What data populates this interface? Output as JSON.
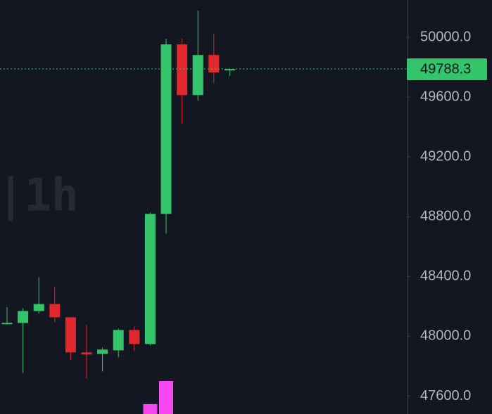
{
  "chart_data": {
    "type": "candlestick",
    "watermark": "|1h",
    "open": [
      48085,
      48089,
      48169,
      48216,
      48127,
      47892,
      47882,
      47906,
      48042,
      47948,
      48819,
      49953,
      49614,
      49882,
      49784
    ],
    "high": [
      48195,
      48188,
      48395,
      48329,
      48127,
      48075,
      47925,
      48052,
      48066,
      48828,
      49991,
      49991,
      50179,
      50024,
      49793
    ],
    "low": [
      48080,
      47755,
      48151,
      48094,
      47840,
      47718,
      47765,
      47859,
      47901,
      47939,
      48687,
      49421,
      49576,
      49694,
      49741
    ],
    "close": [
      48090,
      48169,
      48216,
      48127,
      47892,
      47878,
      47911,
      48042,
      47948,
      48819,
      49953,
      49614,
      49882,
      49765,
      49788.3
    ],
    "volume": [
      null,
      null,
      null,
      null,
      null,
      null,
      null,
      null,
      null,
      30,
      100,
      null,
      null,
      null,
      null
    ],
    "up_color": "#34c56b",
    "down_color": "#e0282e",
    "volume_color": "#f447f0",
    "last_price": 49788.3,
    "ylim": [
      47480,
      50250
    ],
    "yticks": [
      {
        "value": 47600,
        "label": "47600.0"
      },
      {
        "value": 48000,
        "label": "48000.0"
      },
      {
        "value": 48400,
        "label": "48400.0"
      },
      {
        "value": 48800,
        "label": "48800.0"
      },
      {
        "value": 49200,
        "label": "49200.0"
      },
      {
        "value": 49600,
        "label": "49600.0"
      },
      {
        "value": 50000,
        "label": "50000.0"
      }
    ]
  }
}
